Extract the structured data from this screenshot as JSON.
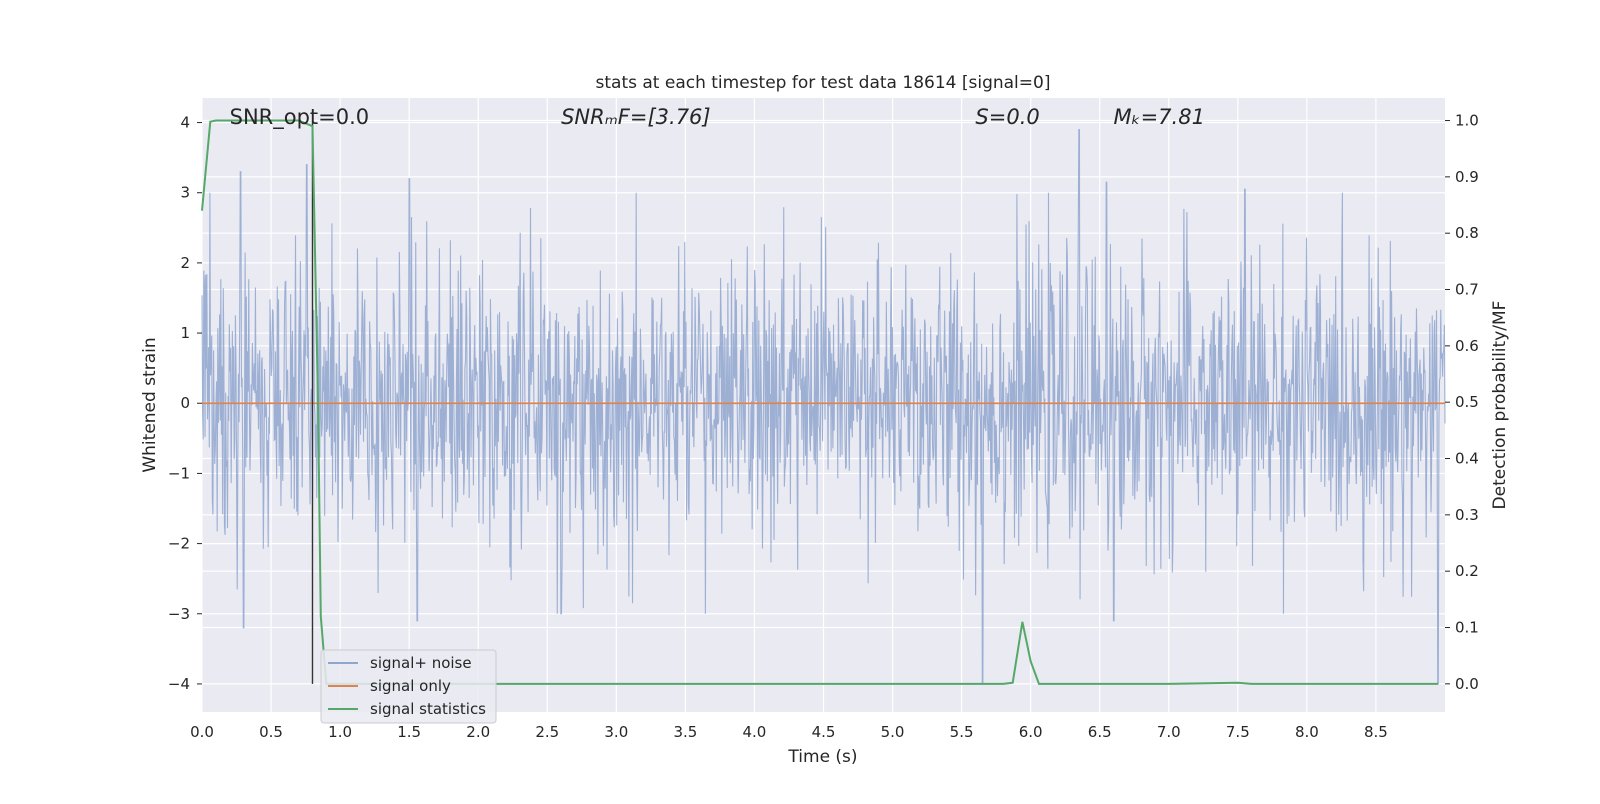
{
  "chart_data": {
    "type": "line",
    "title": "stats at each timestep for test data 18614 [signal=0]",
    "xlabel": "Time (s)",
    "ylabel_left": "Whitened strain",
    "ylabel_right": "Detection probability/MF",
    "xlim": [
      0.0,
      9.0
    ],
    "ylim_left": [
      -4.4,
      4.35
    ],
    "ylim_right": [
      -0.05,
      1.04
    ],
    "x_ticks": [
      "0.0",
      "0.5",
      "1.0",
      "1.5",
      "2.0",
      "2.5",
      "3.0",
      "3.5",
      "4.0",
      "4.5",
      "5.0",
      "5.5",
      "6.0",
      "6.5",
      "7.0",
      "7.5",
      "8.0",
      "8.5"
    ],
    "y_ticks_left": [
      "4",
      "3",
      "2",
      "1",
      "0",
      "−1",
      "−2",
      "−3",
      "−4"
    ],
    "y_ticks_right": [
      "1.0",
      "0.9",
      "0.8",
      "0.7",
      "0.6",
      "0.5",
      "0.4",
      "0.3",
      "0.2",
      "0.1",
      "0.0"
    ],
    "grid": true,
    "legend_position": "lower-left",
    "annotations": [
      {
        "text": "SNR_opt=0.0",
        "x": 0.2,
        "italic": false
      },
      {
        "text": "SNRₘF=[3.76]",
        "x": 2.6,
        "italic": true
      },
      {
        "text": "S=0.0",
        "x": 5.6,
        "italic": true
      },
      {
        "text": "Mₖ=7.81",
        "x": 6.6,
        "italic": true
      }
    ],
    "vline_x": 0.8,
    "series": [
      {
        "name": "signal+ noise",
        "color": "#4c72b0",
        "kind": "noise",
        "amplitude": 1.0,
        "n_samples": 2048,
        "spikes": [
          {
            "x": 0.28,
            "y": 3.3
          },
          {
            "x": 0.3,
            "y": -3.2
          },
          {
            "x": 0.76,
            "y": 3.4
          },
          {
            "x": 1.5,
            "y": 3.2
          },
          {
            "x": 1.56,
            "y": -3.1
          },
          {
            "x": 2.6,
            "y": -3.0
          },
          {
            "x": 5.65,
            "y": -4.0
          },
          {
            "x": 6.35,
            "y": 3.9
          },
          {
            "x": 6.55,
            "y": 3.15
          },
          {
            "x": 6.6,
            "y": -3.1
          },
          {
            "x": 7.55,
            "y": 3.05
          },
          {
            "x": 8.95,
            "y": -4.0
          }
        ]
      },
      {
        "name": "signal only",
        "color": "#dd8452",
        "kind": "flat",
        "y": 0.0
      },
      {
        "name": "signal statistics",
        "color": "#55a868",
        "kind": "probability",
        "x": [
          0.0,
          0.06,
          0.1,
          0.2,
          0.4,
          0.6,
          0.7,
          0.8,
          0.84,
          0.86,
          0.9,
          1.0,
          2.0,
          3.0,
          4.0,
          5.0,
          5.5,
          5.8,
          5.87,
          5.94,
          6.0,
          6.06,
          6.2,
          6.5,
          7.0,
          7.5,
          7.6,
          8.0,
          8.5,
          8.95
        ],
        "y": [
          0.84,
          0.998,
          1.0,
          1.0,
          1.0,
          1.0,
          1.0,
          0.99,
          0.5,
          0.12,
          0.0,
          0.0,
          0.0,
          0.0,
          0.0,
          0.0,
          0.0,
          0.0,
          0.002,
          0.11,
          0.04,
          0.0,
          0.0,
          0.0,
          0.0,
          0.002,
          0.0,
          0.0,
          0.0,
          0.0
        ]
      }
    ]
  }
}
